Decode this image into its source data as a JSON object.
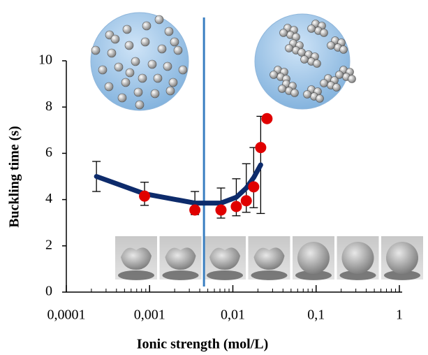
{
  "chart_data": {
    "type": "scatter",
    "x_label": "Ionic strength (mol/L)",
    "y_label": "Buckling time (s)",
    "log_x": true,
    "xlim": [
      0.0001,
      1
    ],
    "ylim": [
      0,
      10
    ],
    "xticks": [
      {
        "value": 0.0001,
        "label": "0,0001"
      },
      {
        "value": 0.001,
        "label": "0,001"
      },
      {
        "value": 0.01,
        "label": "0,01"
      },
      {
        "value": 0.1,
        "label": "0,1"
      },
      1
    ],
    "yticks": [
      0,
      2,
      4,
      6,
      8,
      10
    ],
    "vline": {
      "x": 0.0045,
      "color": "#3a7fc1"
    },
    "series": [
      {
        "kind": "line",
        "color": "#0d2b6b",
        "x": [
          0.00023,
          0.00087,
          0.0035,
          0.0072,
          0.011,
          0.0145,
          0.0178,
          0.0216
        ],
        "values": [
          5.0,
          4.25,
          3.85,
          3.85,
          4.1,
          4.5,
          4.95,
          5.5
        ],
        "errors": [
          0.65,
          0.5,
          0.5,
          0.65,
          0.8,
          1.05,
          1.3,
          2.1
        ]
      },
      {
        "kind": "scatter",
        "color": "#e00000",
        "x": [
          0.00087,
          0.0035,
          0.0072,
          0.011,
          0.0145,
          0.0178,
          0.0216,
          0.0257
        ],
        "values": [
          4.15,
          3.55,
          3.55,
          3.7,
          3.95,
          4.55,
          6.25,
          7.5
        ]
      }
    ]
  }
}
